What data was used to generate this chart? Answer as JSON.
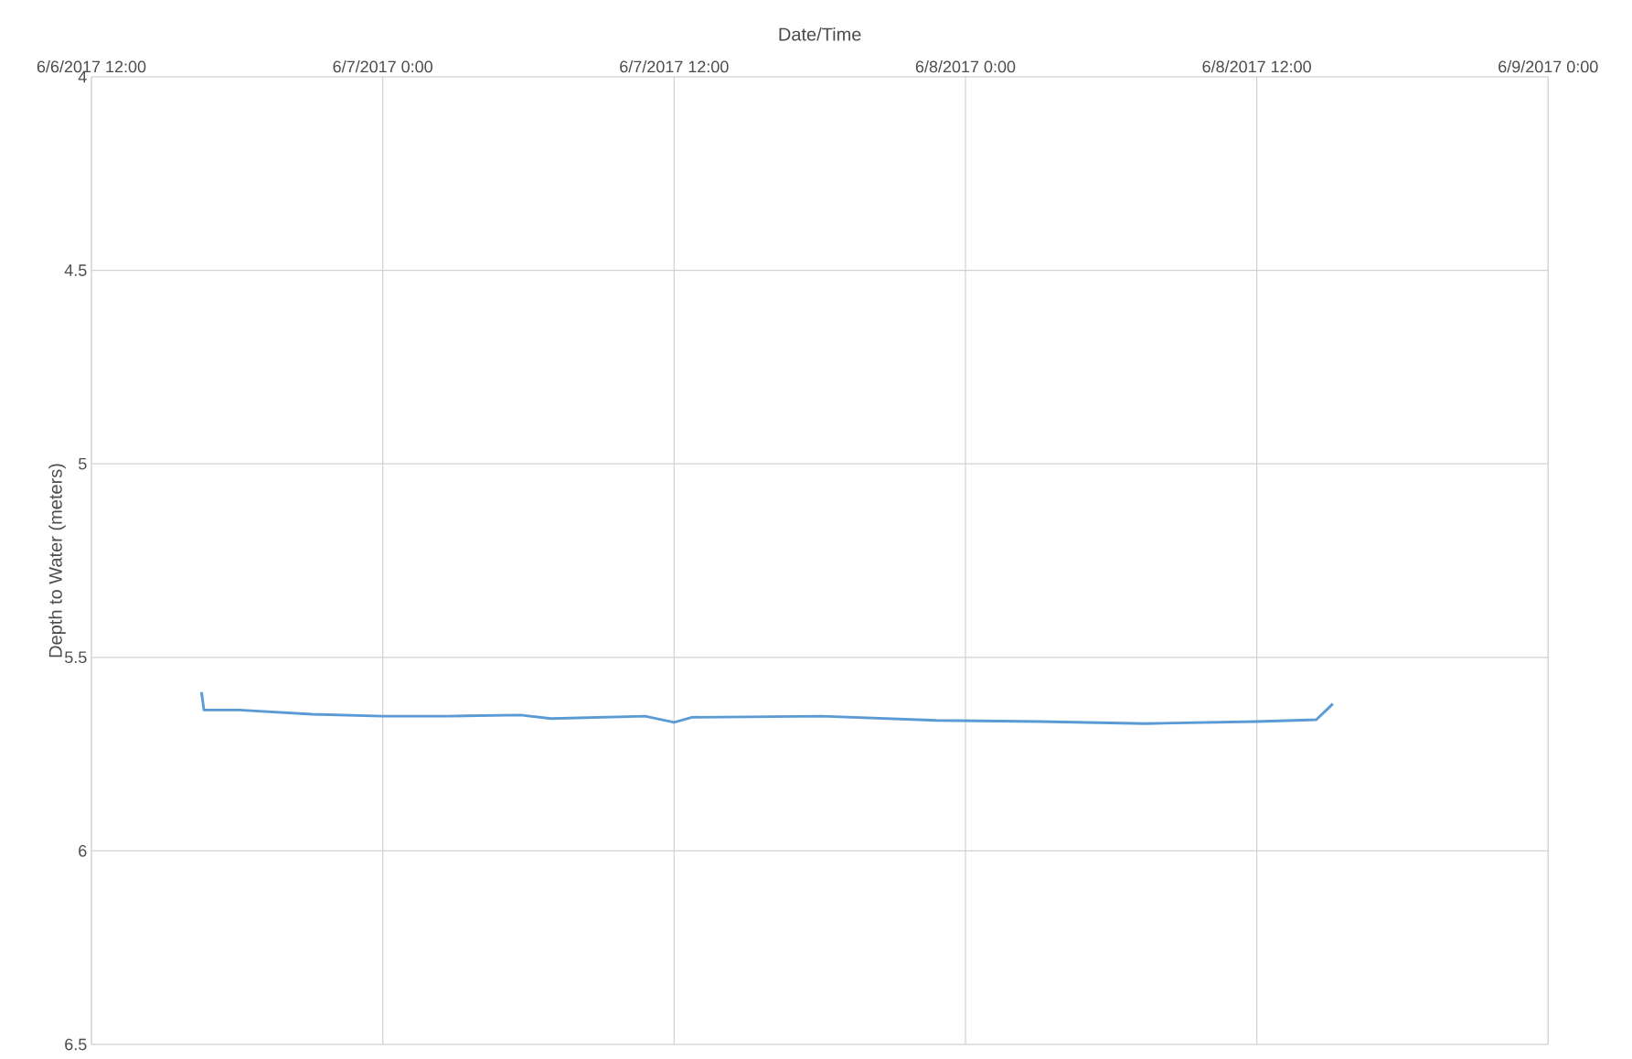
{
  "chart_data": {
    "type": "line",
    "xlabel": "Date/Time",
    "ylabel": "Depth to Water (meters)",
    "x": [
      "2017-06-06T16:32",
      "2017-06-06T16:38",
      "2017-06-06T18:05",
      "2017-06-06T21:05",
      "2017-06-07T00:00",
      "2017-06-07T02:40",
      "2017-06-07T05:40",
      "2017-06-07T06:56",
      "2017-06-07T10:48",
      "2017-06-07T12:00",
      "2017-06-07T12:44",
      "2017-06-07T18:05",
      "2017-06-07T22:48",
      "2017-06-08T03:05",
      "2017-06-08T07:24",
      "2017-06-08T12:00",
      "2017-06-08T14:27",
      "2017-06-08T15:08"
    ],
    "values": [
      5.59,
      5.636,
      5.636,
      5.647,
      5.652,
      5.652,
      5.649,
      5.658,
      5.652,
      5.668,
      5.655,
      5.652,
      5.663,
      5.666,
      5.671,
      5.666,
      5.661,
      5.62
    ],
    "color": "#5b9bd5",
    "xlim": [
      "2017-06-06T12:00",
      "2017-06-09T00:00"
    ],
    "xticks": [
      {
        "value": "2017-06-06T12:00",
        "label": "6/6/2017 12:00"
      },
      {
        "value": "2017-06-07T00:00",
        "label": "6/7/2017 0:00"
      },
      {
        "value": "2017-06-07T12:00",
        "label": "6/7/2017 12:00"
      },
      {
        "value": "2017-06-08T00:00",
        "label": "6/8/2017 0:00"
      },
      {
        "value": "2017-06-08T12:00",
        "label": "6/8/2017 12:00"
      },
      {
        "value": "2017-06-09T00:00",
        "label": "6/9/2017 0:00"
      }
    ],
    "ylim": [
      6.5,
      4
    ],
    "yticks": [
      4,
      4.5,
      5,
      5.5,
      6,
      6.5
    ],
    "grid": true
  }
}
